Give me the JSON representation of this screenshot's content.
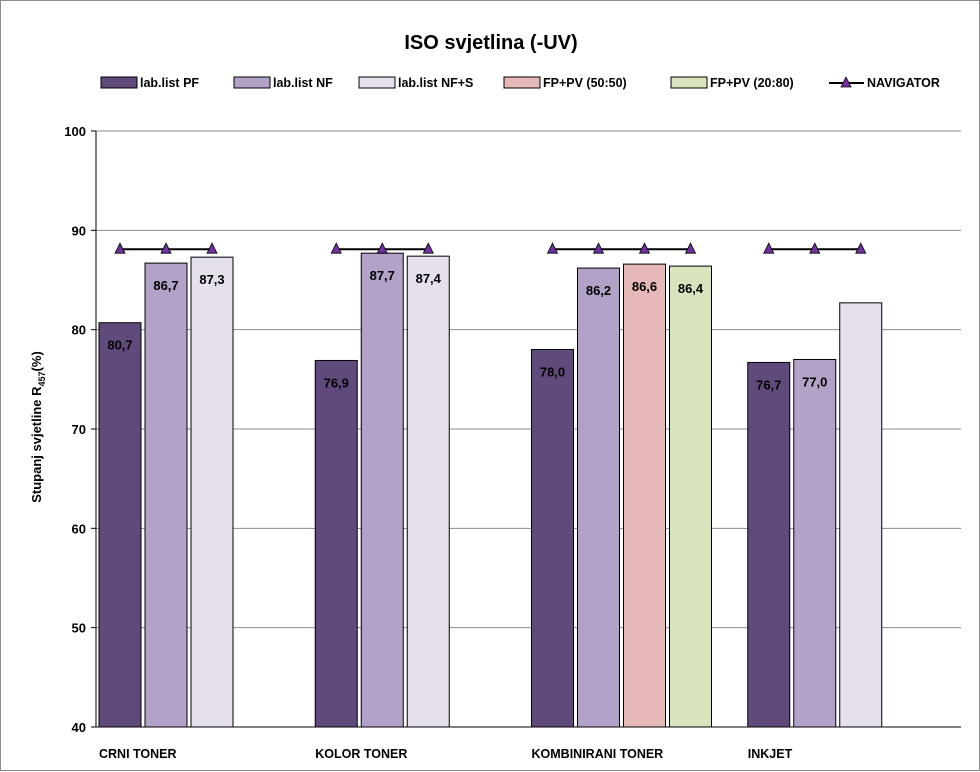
{
  "chart_data": {
    "type": "bar",
    "title": "ISO svjetlina  (-UV)",
    "ylabel": "Stupanj svjetline  R",
    "ylabel_sub": "457",
    "ylabel_suffix": "(%)",
    "ylim": [
      40,
      100
    ],
    "yticks": [
      40,
      50,
      60,
      70,
      80,
      90,
      100
    ],
    "grid": true,
    "legend_position": "top",
    "categories": [
      "CRNI TONER",
      "KOLOR TONER",
      "KOMBINIRANI TONER",
      "INKJET"
    ],
    "series": [
      {
        "name": "lab.list PF",
        "color": "#604a7b",
        "values": [
          80.7,
          76.9,
          78.0,
          76.7
        ],
        "labels": [
          "80,7",
          "76,9",
          "78,0",
          "76,7"
        ]
      },
      {
        "name": "lab.list NF",
        "color": "#b3a2c7",
        "values": [
          86.7,
          87.7,
          86.2,
          77.0
        ],
        "labels": [
          "86,7",
          "87,7",
          "86,2",
          "77,0"
        ]
      },
      {
        "name": "lab.list NF+S",
        "color": "#e6e0ec",
        "values": [
          87.3,
          87.4,
          null,
          82.7
        ],
        "labels": [
          "87,3",
          "87,4",
          "",
          ""
        ]
      },
      {
        "name": "FP+PV (50:50)",
        "color": "#e6b9b8",
        "values": [
          null,
          null,
          86.6,
          null
        ],
        "labels": [
          "",
          "",
          "86,6",
          ""
        ]
      },
      {
        "name": "FP+PV (20:80)",
        "color": "#d7e4bd",
        "values": [
          null,
          null,
          86.4,
          null
        ],
        "labels": [
          "",
          "",
          "86,4",
          ""
        ]
      }
    ],
    "navigator": {
      "name": "NAVIGATOR",
      "color": "#000000",
      "marker_color": "#7030a0",
      "value": 88.1
    },
    "category_bar_series": [
      [
        0,
        1,
        2
      ],
      [
        0,
        1,
        2
      ],
      [
        0,
        1,
        3,
        4
      ],
      [
        0,
        1,
        2
      ]
    ]
  }
}
